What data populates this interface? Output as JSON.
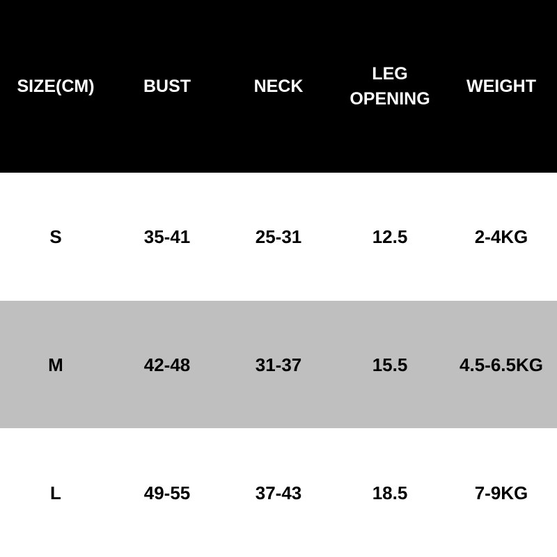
{
  "table": {
    "headers": [
      [
        "SIZE(CM)"
      ],
      [
        "BUST"
      ],
      [
        "NECK"
      ],
      [
        "LEG",
        "OPENING"
      ],
      [
        "WEIGHT"
      ]
    ],
    "rows": [
      [
        "S",
        "35-41",
        "25-31",
        "12.5",
        "2-4KG"
      ],
      [
        "M",
        "42-48",
        "31-37",
        "15.5",
        "4.5-6.5KG"
      ],
      [
        "L",
        "49-55",
        "37-43",
        "18.5",
        "7-9KG"
      ]
    ]
  },
  "colors": {
    "header_bg": "#000000",
    "header_text": "#ffffff",
    "stripe_bg": "#bfbfbf",
    "row_bg": "#ffffff"
  }
}
